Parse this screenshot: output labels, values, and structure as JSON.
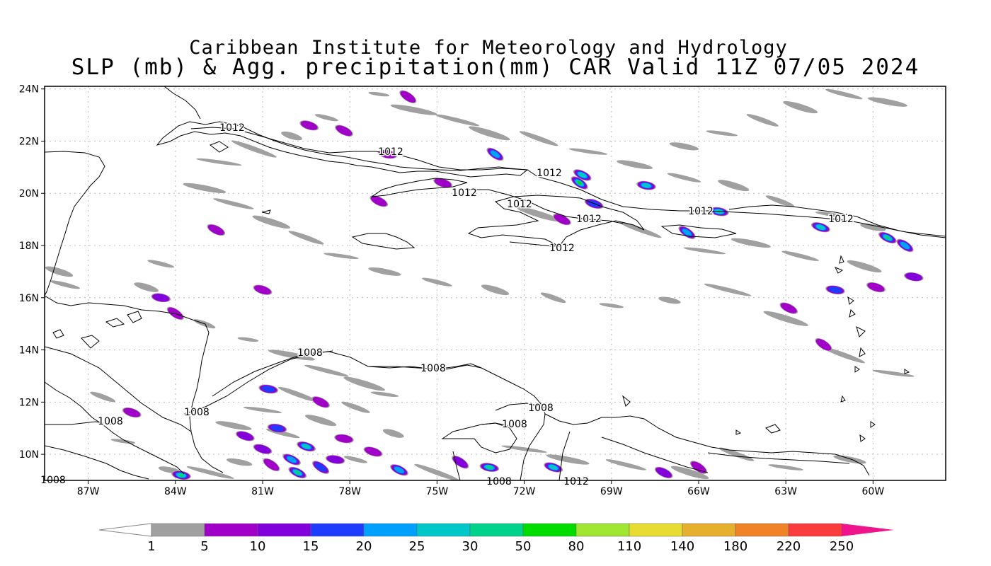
{
  "title_line1": "Caribbean Institute for Meteorology and Hydrology",
  "title_line2": "SLP (mb) & Agg. precipitation(mm) CAR Valid 11Z 07/05 2024",
  "lat_labels": [
    "24N",
    "22N",
    "20N",
    "18N",
    "16N",
    "14N",
    "12N",
    "10N"
  ],
  "lon_labels": [
    "87W",
    "84W",
    "81W",
    "78W",
    "75W",
    "72W",
    "69W",
    "66W",
    "63W",
    "60W"
  ],
  "isobar_labels": [
    {
      "text": "1012"
    },
    {
      "text": "1012"
    },
    {
      "text": "1012"
    },
    {
      "text": "1012"
    },
    {
      "text": "1012"
    },
    {
      "text": "1012"
    },
    {
      "text": "1012"
    },
    {
      "text": "1012"
    },
    {
      "text": "1012"
    },
    {
      "text": "1008"
    },
    {
      "text": "1008"
    },
    {
      "text": "1008"
    },
    {
      "text": "1008"
    },
    {
      "text": "1008"
    },
    {
      "text": "1008"
    },
    {
      "text": "1008"
    },
    {
      "text": "1008"
    },
    {
      "text": "1012"
    }
  ],
  "colorbar": {
    "labels": [
      "1",
      "5",
      "10",
      "15",
      "20",
      "25",
      "30",
      "50",
      "80",
      "110",
      "140",
      "180",
      "220",
      "250"
    ],
    "colors": [
      "#a0a0a0",
      "#a000c8",
      "#8200dc",
      "#1e3cff",
      "#00a0ff",
      "#00c8c8",
      "#00d28c",
      "#00dc00",
      "#a0e632",
      "#e6dc32",
      "#e6af2d",
      "#f08228",
      "#fa3c3c"
    ],
    "end_color": "#f0148c"
  },
  "precip_cells": [
    {
      "lon": -80.5,
      "lat": 11.0,
      "level": 3
    },
    {
      "lon": -79.5,
      "lat": 10.3,
      "level": 5
    },
    {
      "lon": -80.0,
      "lat": 9.8,
      "level": 4
    },
    {
      "lon": -79.0,
      "lat": 9.5,
      "level": 3
    },
    {
      "lon": -78.5,
      "lat": 9.8,
      "level": 2
    },
    {
      "lon": -81.0,
      "lat": 10.2,
      "level": 2
    },
    {
      "lon": -79.8,
      "lat": 9.3,
      "level": 6
    },
    {
      "lon": -80.7,
      "lat": 9.6,
      "level": 1
    },
    {
      "lon": -78.2,
      "lat": 10.6,
      "level": 1
    },
    {
      "lon": -77.2,
      "lat": 10.1,
      "level": 1
    },
    {
      "lon": -76.3,
      "lat": 9.4,
      "level": 4
    },
    {
      "lon": -74.2,
      "lat": 9.7,
      "level": 2
    },
    {
      "lon": -73.2,
      "lat": 9.5,
      "level": 6
    },
    {
      "lon": -71.0,
      "lat": 9.5,
      "level": 5
    },
    {
      "lon": -67.2,
      "lat": 9.3,
      "level": 2
    },
    {
      "lon": -66.0,
      "lat": 9.5,
      "level": 1
    },
    {
      "lon": -83.8,
      "lat": 9.2,
      "level": 6
    },
    {
      "lon": -85.5,
      "lat": 11.6,
      "level": 1
    },
    {
      "lon": -70.0,
      "lat": 20.7,
      "level": 5
    },
    {
      "lon": -70.1,
      "lat": 20.4,
      "level": 7
    },
    {
      "lon": -67.8,
      "lat": 20.3,
      "level": 5
    },
    {
      "lon": -69.6,
      "lat": 19.6,
      "level": 3
    },
    {
      "lon": -70.7,
      "lat": 19.0,
      "level": 1
    },
    {
      "lon": -73.0,
      "lat": 21.5,
      "level": 4
    },
    {
      "lon": -76.7,
      "lat": 21.5,
      "level": 1
    },
    {
      "lon": -74.8,
      "lat": 20.4,
      "level": 1
    },
    {
      "lon": -77.0,
      "lat": 19.7,
      "level": 1
    },
    {
      "lon": -66.4,
      "lat": 18.5,
      "level": 4
    },
    {
      "lon": -65.3,
      "lat": 19.3,
      "level": 5
    },
    {
      "lon": -61.8,
      "lat": 18.7,
      "level": 5
    },
    {
      "lon": -59.5,
      "lat": 18.3,
      "level": 6
    },
    {
      "lon": -58.9,
      "lat": 18.0,
      "level": 4
    },
    {
      "lon": -61.3,
      "lat": 16.3,
      "level": 3
    },
    {
      "lon": -59.9,
      "lat": 16.4,
      "level": 1
    },
    {
      "lon": -62.9,
      "lat": 15.6,
      "level": 1
    },
    {
      "lon": -61.7,
      "lat": 14.2,
      "level": 1
    },
    {
      "lon": -58.6,
      "lat": 16.8,
      "level": 2
    },
    {
      "lon": -79.4,
      "lat": 22.6,
      "level": 1
    },
    {
      "lon": -78.2,
      "lat": 22.4,
      "level": 1
    },
    {
      "lon": -76.0,
      "lat": 23.7,
      "level": 1
    },
    {
      "lon": -84.5,
      "lat": 16.0,
      "level": 2
    },
    {
      "lon": -81.0,
      "lat": 16.3,
      "level": 1
    },
    {
      "lon": -82.6,
      "lat": 18.6,
      "level": 1
    },
    {
      "lon": -84.0,
      "lat": 15.4,
      "level": 1
    },
    {
      "lon": -80.8,
      "lat": 12.5,
      "level": 3
    },
    {
      "lon": -81.6,
      "lat": 10.7,
      "level": 2
    },
    {
      "lon": -79.0,
      "lat": 12.0,
      "level": 1
    }
  ],
  "gray_streaks": [
    {
      "lon": -77.0,
      "lat": 23.8
    },
    {
      "lon": -75.8,
      "lat": 23.2
    },
    {
      "lon": -74.3,
      "lat": 22.8
    },
    {
      "lon": -73.2,
      "lat": 22.3
    },
    {
      "lon": -71.5,
      "lat": 22.1
    },
    {
      "lon": -69.8,
      "lat": 21.6
    },
    {
      "lon": -68.2,
      "lat": 21.1
    },
    {
      "lon": -66.5,
      "lat": 20.6
    },
    {
      "lon": -64.8,
      "lat": 20.3
    },
    {
      "lon": -63.2,
      "lat": 19.7
    },
    {
      "lon": -61.5,
      "lat": 19.2
    },
    {
      "lon": -60.0,
      "lat": 18.7
    },
    {
      "lon": -78.8,
      "lat": 22.9
    },
    {
      "lon": -80.0,
      "lat": 22.2
    },
    {
      "lon": -81.3,
      "lat": 21.7
    },
    {
      "lon": -82.5,
      "lat": 21.2
    },
    {
      "lon": -83.0,
      "lat": 20.2
    },
    {
      "lon": -82.0,
      "lat": 19.6
    },
    {
      "lon": -80.7,
      "lat": 18.9
    },
    {
      "lon": -79.5,
      "lat": 18.3
    },
    {
      "lon": -78.3,
      "lat": 17.6
    },
    {
      "lon": -76.8,
      "lat": 17.0
    },
    {
      "lon": -75.0,
      "lat": 16.6
    },
    {
      "lon": -73.0,
      "lat": 16.3
    },
    {
      "lon": -71.0,
      "lat": 16.0
    },
    {
      "lon": -69.0,
      "lat": 15.7
    },
    {
      "lon": -67.0,
      "lat": 15.9
    },
    {
      "lon": -65.0,
      "lat": 16.3
    },
    {
      "lon": -63.0,
      "lat": 15.2
    },
    {
      "lon": -61.0,
      "lat": 13.8
    },
    {
      "lon": -59.3,
      "lat": 13.1
    },
    {
      "lon": -59.5,
      "lat": 23.5
    },
    {
      "lon": -61.0,
      "lat": 23.8
    },
    {
      "lon": -62.5,
      "lat": 23.3
    },
    {
      "lon": -63.8,
      "lat": 22.8
    },
    {
      "lon": -65.2,
      "lat": 22.3
    },
    {
      "lon": -66.5,
      "lat": 21.8
    },
    {
      "lon": -84.5,
      "lat": 17.3
    },
    {
      "lon": -85.0,
      "lat": 16.4
    },
    {
      "lon": -83.0,
      "lat": 15.0
    },
    {
      "lon": -81.5,
      "lat": 14.4
    },
    {
      "lon": -80.0,
      "lat": 13.8
    },
    {
      "lon": -78.8,
      "lat": 13.2
    },
    {
      "lon": -77.5,
      "lat": 12.7
    },
    {
      "lon": -79.8,
      "lat": 12.3
    },
    {
      "lon": -81.0,
      "lat": 11.7
    },
    {
      "lon": -82.0,
      "lat": 11.1
    },
    {
      "lon": -80.3,
      "lat": 10.8
    },
    {
      "lon": -79.0,
      "lat": 11.3
    },
    {
      "lon": -77.8,
      "lat": 11.8
    },
    {
      "lon": -76.8,
      "lat": 12.3
    },
    {
      "lon": -81.8,
      "lat": 9.7
    },
    {
      "lon": -77.8,
      "lat": 9.8
    },
    {
      "lon": -76.5,
      "lat": 10.8
    },
    {
      "lon": -75.0,
      "lat": 9.3
    },
    {
      "lon": -72.0,
      "lat": 10.2
    },
    {
      "lon": -70.5,
      "lat": 9.8
    },
    {
      "lon": -68.5,
      "lat": 9.6
    },
    {
      "lon": -66.3,
      "lat": 9.3
    },
    {
      "lon": -64.7,
      "lat": 10.0
    },
    {
      "lon": -63.0,
      "lat": 9.5
    },
    {
      "lon": -60.8,
      "lat": 9.8
    },
    {
      "lon": -87.8,
      "lat": 16.5
    },
    {
      "lon": -88.0,
      "lat": 17.0
    },
    {
      "lon": -86.5,
      "lat": 12.2
    },
    {
      "lon": -85.8,
      "lat": 10.5
    },
    {
      "lon": -84.2,
      "lat": 9.4
    },
    {
      "lon": -82.8,
      "lat": 9.3
    },
    {
      "lon": -71.5,
      "lat": 19.2
    },
    {
      "lon": -68.0,
      "lat": 18.6
    },
    {
      "lon": -65.8,
      "lat": 17.8
    },
    {
      "lon": -64.2,
      "lat": 18.1
    },
    {
      "lon": -62.5,
      "lat": 17.6
    },
    {
      "lon": -60.3,
      "lat": 17.2
    }
  ]
}
